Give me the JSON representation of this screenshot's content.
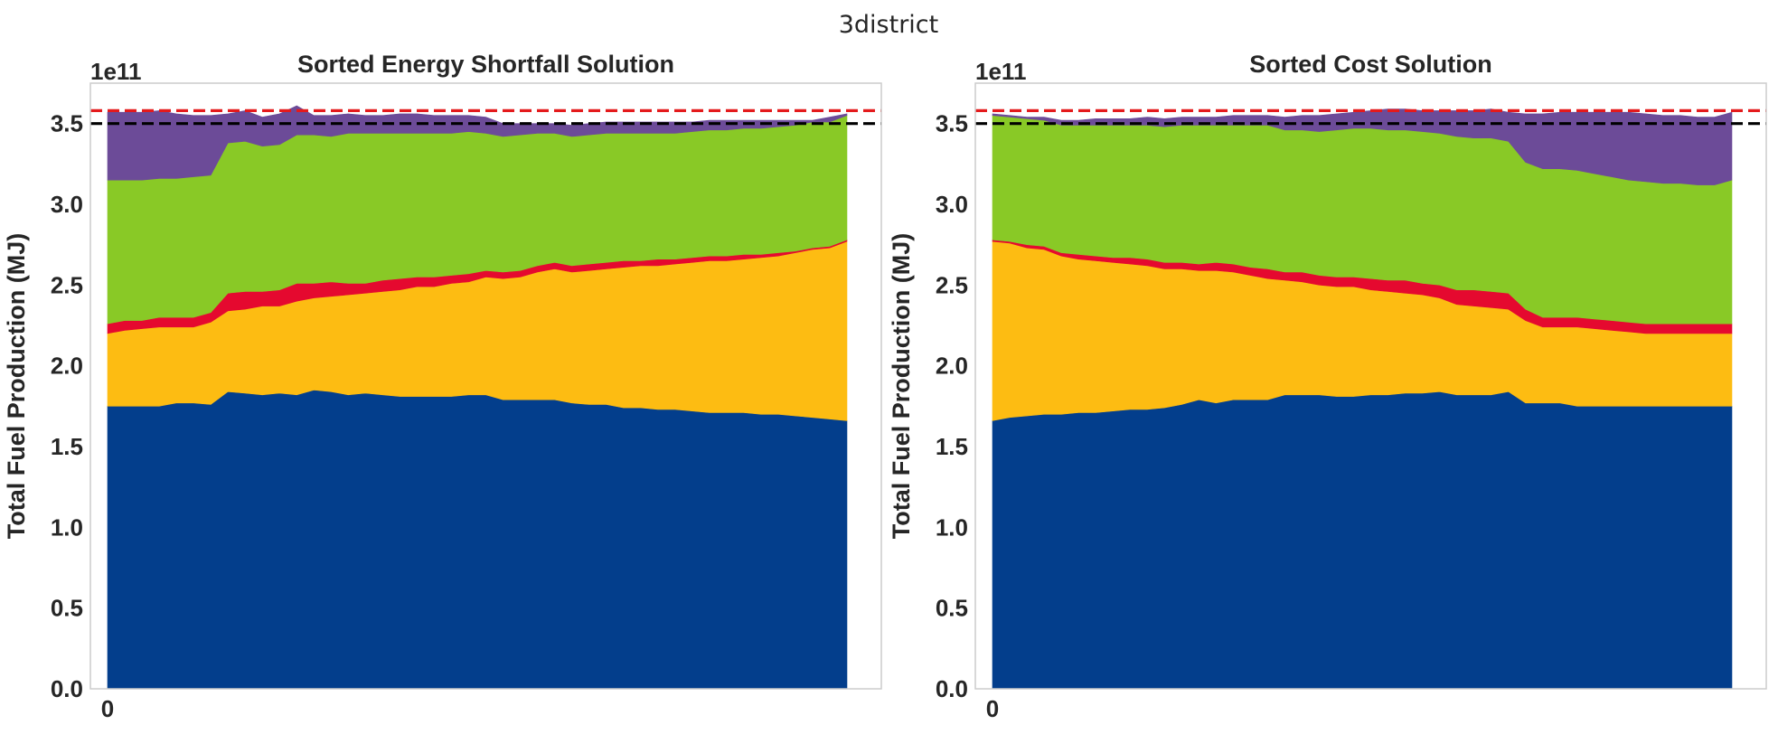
{
  "figure": {
    "suptitle": "3district"
  },
  "colors": {
    "stack": [
      "#033e8c",
      "#fdbc12",
      "#e5092f",
      "#89c926",
      "#6c4b98"
    ],
    "limit_line_red": "#e41a1c",
    "limit_line_black": "#000000",
    "frame": "#cccccc",
    "text": "#262626"
  },
  "chart_data": [
    {
      "type": "area",
      "stacked": true,
      "title": "Sorted Energy Shortfall Solution",
      "ylabel": "Total Fuel Production (MJ)",
      "y_offset_text": "1e11",
      "ylim": [
        0,
        3.75
      ],
      "xlim": [
        -1,
        45
      ],
      "xtick_values": [
        0
      ],
      "xtick_labels": [
        "0"
      ],
      "ytick_values": [
        0.0,
        0.5,
        1.0,
        1.5,
        2.0,
        2.5,
        3.0,
        3.5
      ],
      "ytick_labels": [
        "0.0",
        "0.5",
        "1.0",
        "1.5",
        "2.0",
        "2.5",
        "3.0",
        "3.5"
      ],
      "grid": false,
      "hlines": [
        {
          "y": 3.58,
          "style": "dashed",
          "color": "#e41a1c"
        },
        {
          "y": 3.5,
          "style": "dashed",
          "color": "#000000"
        }
      ],
      "x": [
        0,
        1,
        2,
        3,
        4,
        5,
        6,
        7,
        8,
        9,
        10,
        11,
        12,
        13,
        14,
        15,
        16,
        17,
        18,
        19,
        20,
        21,
        22,
        23,
        24,
        25,
        26,
        27,
        28,
        29,
        30,
        31,
        32,
        33,
        34,
        35,
        36,
        37,
        38,
        39,
        40,
        41,
        42,
        43
      ],
      "series": [
        {
          "values": [
            1.75,
            1.75,
            1.75,
            1.75,
            1.77,
            1.77,
            1.76,
            1.84,
            1.83,
            1.82,
            1.83,
            1.82,
            1.85,
            1.84,
            1.82,
            1.83,
            1.82,
            1.81,
            1.81,
            1.81,
            1.81,
            1.82,
            1.82,
            1.79,
            1.79,
            1.79,
            1.79,
            1.77,
            1.76,
            1.76,
            1.74,
            1.74,
            1.73,
            1.73,
            1.72,
            1.71,
            1.71,
            1.71,
            1.7,
            1.7,
            1.69,
            1.68,
            1.67,
            1.66
          ]
        },
        {
          "values": [
            0.45,
            0.47,
            0.48,
            0.49,
            0.47,
            0.47,
            0.51,
            0.5,
            0.52,
            0.55,
            0.54,
            0.58,
            0.57,
            0.59,
            0.62,
            0.62,
            0.64,
            0.66,
            0.68,
            0.68,
            0.7,
            0.7,
            0.73,
            0.75,
            0.76,
            0.79,
            0.81,
            0.81,
            0.83,
            0.84,
            0.87,
            0.88,
            0.89,
            0.9,
            0.92,
            0.94,
            0.94,
            0.95,
            0.97,
            0.98,
            1.01,
            1.04,
            1.06,
            1.11
          ]
        },
        {
          "values": [
            0.06,
            0.06,
            0.05,
            0.06,
            0.06,
            0.06,
            0.06,
            0.11,
            0.11,
            0.09,
            0.1,
            0.11,
            0.09,
            0.09,
            0.07,
            0.06,
            0.07,
            0.07,
            0.06,
            0.06,
            0.05,
            0.05,
            0.04,
            0.04,
            0.04,
            0.04,
            0.04,
            0.04,
            0.04,
            0.04,
            0.04,
            0.03,
            0.04,
            0.03,
            0.03,
            0.03,
            0.03,
            0.03,
            0.02,
            0.02,
            0.01,
            0.01,
            0.01,
            0.01
          ]
        },
        {
          "values": [
            0.89,
            0.87,
            0.87,
            0.86,
            0.86,
            0.87,
            0.85,
            0.93,
            0.93,
            0.9,
            0.9,
            0.92,
            0.92,
            0.9,
            0.93,
            0.93,
            0.91,
            0.9,
            0.89,
            0.89,
            0.88,
            0.88,
            0.85,
            0.84,
            0.84,
            0.82,
            0.8,
            0.8,
            0.8,
            0.8,
            0.79,
            0.79,
            0.78,
            0.78,
            0.78,
            0.78,
            0.78,
            0.78,
            0.78,
            0.78,
            0.78,
            0.78,
            0.77,
            0.77
          ]
        },
        {
          "values": [
            0.42,
            0.42,
            0.42,
            0.42,
            0.4,
            0.38,
            0.37,
            0.18,
            0.19,
            0.18,
            0.19,
            0.18,
            0.12,
            0.13,
            0.12,
            0.11,
            0.11,
            0.12,
            0.12,
            0.11,
            0.11,
            0.1,
            0.1,
            0.08,
            0.07,
            0.06,
            0.06,
            0.07,
            0.07,
            0.07,
            0.07,
            0.07,
            0.07,
            0.07,
            0.06,
            0.06,
            0.06,
            0.05,
            0.05,
            0.04,
            0.03,
            0.01,
            0.03,
            0.01
          ]
        }
      ]
    },
    {
      "type": "area",
      "stacked": true,
      "title": "Sorted Cost Solution",
      "ylabel": "Total Fuel Production (MJ)",
      "y_offset_text": "1e11",
      "ylim": [
        0,
        3.75
      ],
      "xlim": [
        -1,
        45
      ],
      "xtick_values": [
        0
      ],
      "xtick_labels": [
        "0"
      ],
      "ytick_values": [
        0.0,
        0.5,
        1.0,
        1.5,
        2.0,
        2.5,
        3.0,
        3.5
      ],
      "ytick_labels": [
        "0.0",
        "0.5",
        "1.0",
        "1.5",
        "2.0",
        "2.5",
        "3.0",
        "3.5"
      ],
      "grid": false,
      "hlines": [
        {
          "y": 3.58,
          "style": "dashed",
          "color": "#e41a1c"
        },
        {
          "y": 3.5,
          "style": "dashed",
          "color": "#000000"
        }
      ],
      "x": [
        0,
        1,
        2,
        3,
        4,
        5,
        6,
        7,
        8,
        9,
        10,
        11,
        12,
        13,
        14,
        15,
        16,
        17,
        18,
        19,
        20,
        21,
        22,
        23,
        24,
        25,
        26,
        27,
        28,
        29,
        30,
        31,
        32,
        33,
        34,
        35,
        36,
        37,
        38,
        39,
        40,
        41,
        42,
        43
      ],
      "series": [
        {
          "values": [
            1.66,
            1.68,
            1.69,
            1.7,
            1.7,
            1.71,
            1.71,
            1.72,
            1.73,
            1.73,
            1.74,
            1.76,
            1.79,
            1.77,
            1.79,
            1.79,
            1.79,
            1.82,
            1.82,
            1.82,
            1.81,
            1.81,
            1.82,
            1.82,
            1.83,
            1.83,
            1.84,
            1.82,
            1.82,
            1.82,
            1.84,
            1.77,
            1.77,
            1.77,
            1.75,
            1.75,
            1.75,
            1.75,
            1.75,
            1.75,
            1.75,
            1.75,
            1.75,
            1.75
          ]
        },
        {
          "values": [
            1.11,
            1.08,
            1.04,
            1.02,
            0.98,
            0.95,
            0.94,
            0.92,
            0.9,
            0.89,
            0.86,
            0.84,
            0.8,
            0.82,
            0.79,
            0.77,
            0.75,
            0.71,
            0.7,
            0.68,
            0.68,
            0.68,
            0.65,
            0.64,
            0.62,
            0.61,
            0.58,
            0.56,
            0.55,
            0.54,
            0.51,
            0.51,
            0.47,
            0.47,
            0.49,
            0.48,
            0.47,
            0.46,
            0.45,
            0.45,
            0.45,
            0.45,
            0.45,
            0.45
          ]
        },
        {
          "values": [
            0.01,
            0.01,
            0.02,
            0.02,
            0.02,
            0.03,
            0.03,
            0.03,
            0.04,
            0.04,
            0.04,
            0.04,
            0.04,
            0.05,
            0.05,
            0.05,
            0.06,
            0.05,
            0.06,
            0.06,
            0.06,
            0.06,
            0.07,
            0.07,
            0.08,
            0.07,
            0.08,
            0.09,
            0.1,
            0.1,
            0.1,
            0.07,
            0.06,
            0.06,
            0.06,
            0.06,
            0.06,
            0.06,
            0.06,
            0.06,
            0.06,
            0.06,
            0.06,
            0.06
          ]
        },
        {
          "values": [
            0.77,
            0.77,
            0.78,
            0.78,
            0.79,
            0.8,
            0.81,
            0.82,
            0.82,
            0.83,
            0.84,
            0.85,
            0.86,
            0.85,
            0.86,
            0.88,
            0.89,
            0.88,
            0.88,
            0.89,
            0.91,
            0.92,
            0.93,
            0.93,
            0.93,
            0.94,
            0.94,
            0.95,
            0.94,
            0.95,
            0.94,
            0.91,
            0.92,
            0.92,
            0.91,
            0.9,
            0.89,
            0.88,
            0.88,
            0.87,
            0.87,
            0.86,
            0.86,
            0.89
          ]
        },
        {
          "values": [
            0.01,
            0.01,
            0.01,
            0.02,
            0.03,
            0.03,
            0.04,
            0.04,
            0.04,
            0.05,
            0.05,
            0.05,
            0.05,
            0.05,
            0.06,
            0.06,
            0.06,
            0.08,
            0.09,
            0.1,
            0.1,
            0.1,
            0.11,
            0.13,
            0.13,
            0.13,
            0.14,
            0.16,
            0.17,
            0.18,
            0.18,
            0.3,
            0.34,
            0.35,
            0.36,
            0.38,
            0.4,
            0.42,
            0.42,
            0.42,
            0.42,
            0.42,
            0.42,
            0.42
          ]
        }
      ]
    }
  ]
}
